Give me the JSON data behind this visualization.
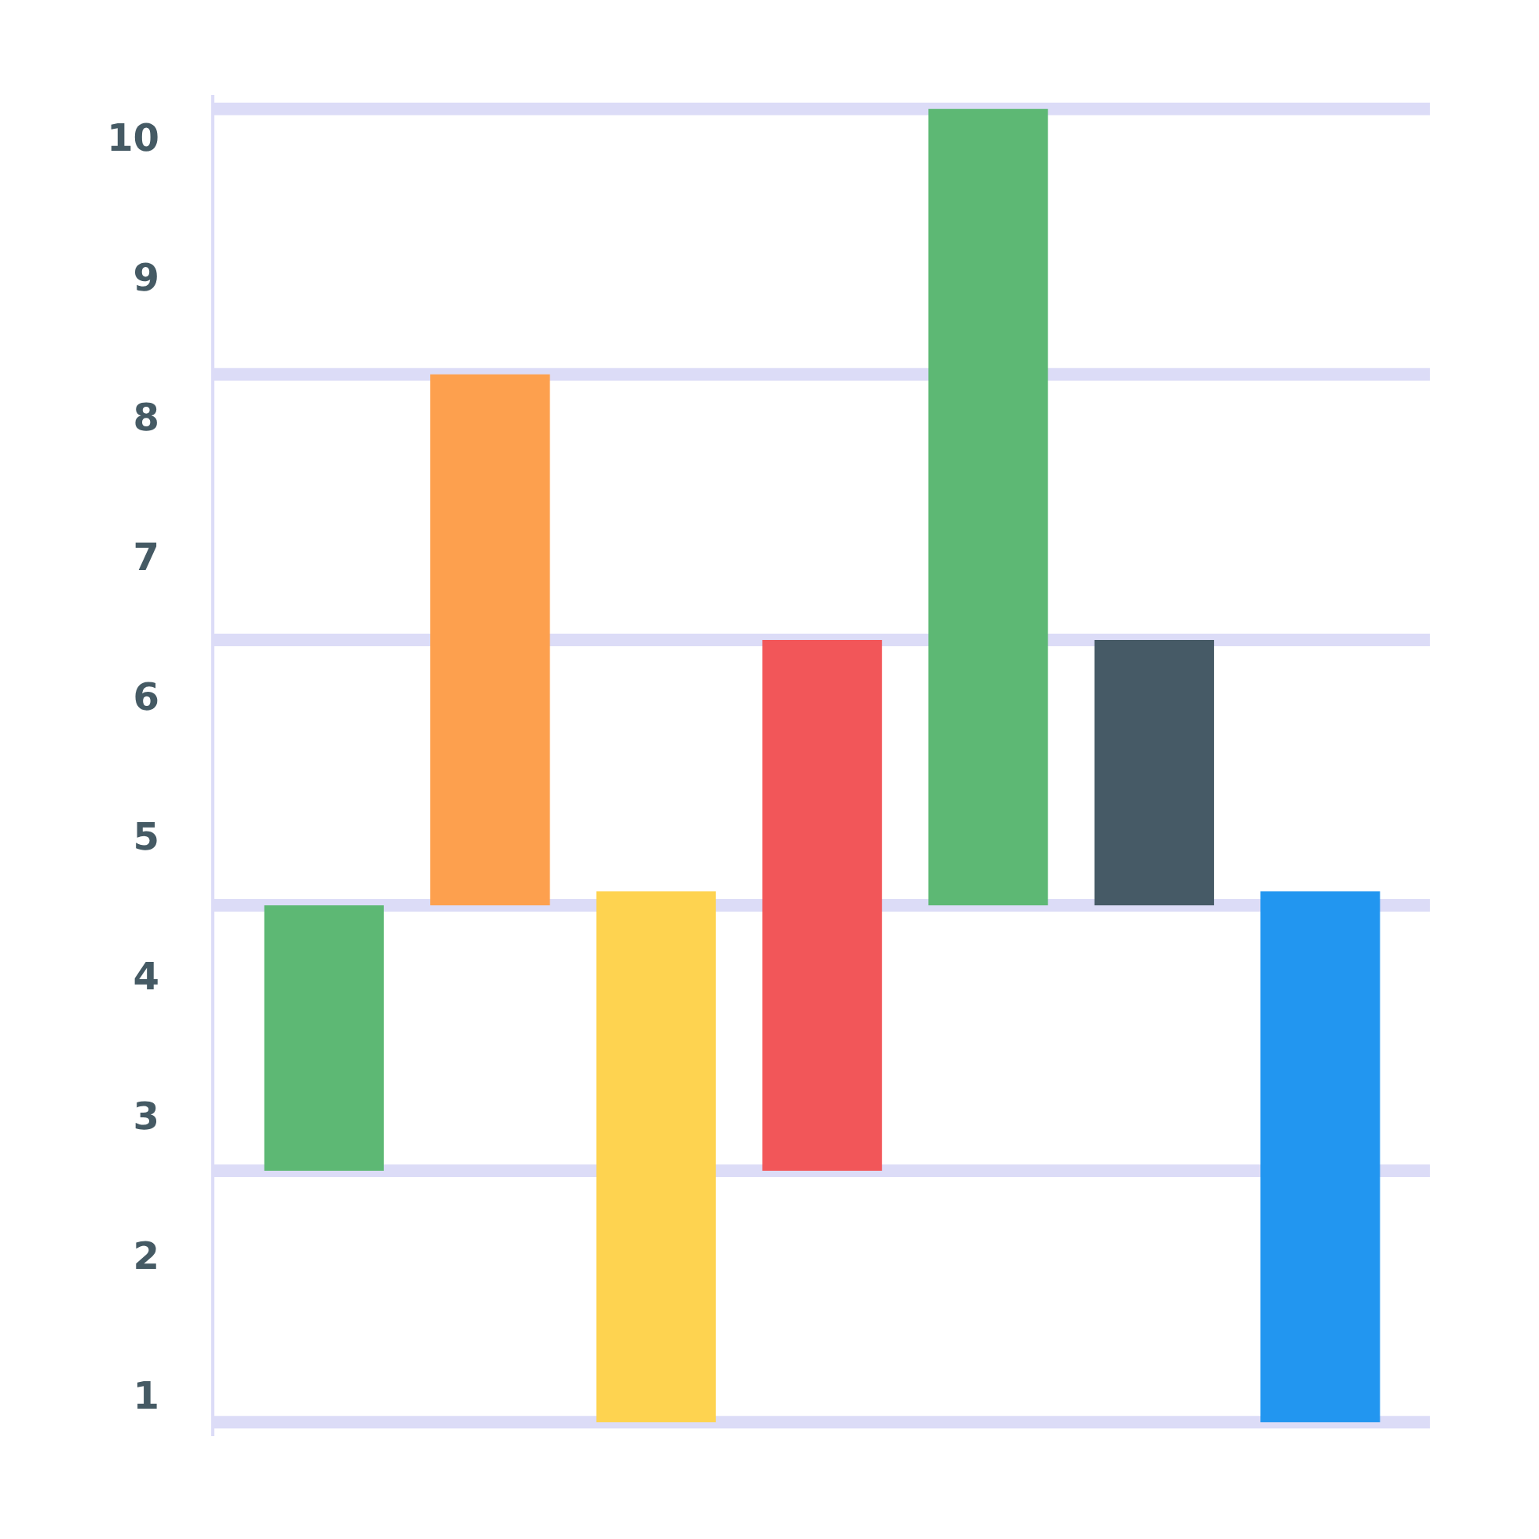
{
  "chart_data": {
    "type": "bar",
    "categories": [
      null,
      null,
      null,
      null,
      null,
      null,
      null
    ],
    "base": [
      2.6,
      4.5,
      0.8,
      2.6,
      4.5,
      4.5,
      0.8
    ],
    "values": [
      1.9,
      3.8,
      3.8,
      3.8,
      5.7,
      1.9,
      3.8
    ],
    "colors": [
      "#5db874",
      "#fda04e",
      "#fed350",
      "#f25659",
      "#5db874",
      "#465a66",
      "#2296f0"
    ],
    "ylim": [
      0.7,
      10.3
    ],
    "yticks": [
      1,
      2,
      3,
      4,
      5,
      6,
      7,
      8,
      9,
      10
    ],
    "grid": false,
    "tick_labels": "y",
    "ref_lines": [
      {
        "axis": "y",
        "value": 0.8,
        "color": "#dcdcf7"
      },
      {
        "axis": "y",
        "value": 2.6,
        "color": "#dcdcf7"
      },
      {
        "axis": "y",
        "value": 4.5,
        "color": "#dcdcf7"
      },
      {
        "axis": "y",
        "value": 6.4,
        "color": "#dcdcf7"
      },
      {
        "axis": "y",
        "value": 8.3,
        "color": "#dcdcf7"
      },
      {
        "axis": "y",
        "value": 10.2,
        "color": "#dcdcf7"
      }
    ]
  }
}
